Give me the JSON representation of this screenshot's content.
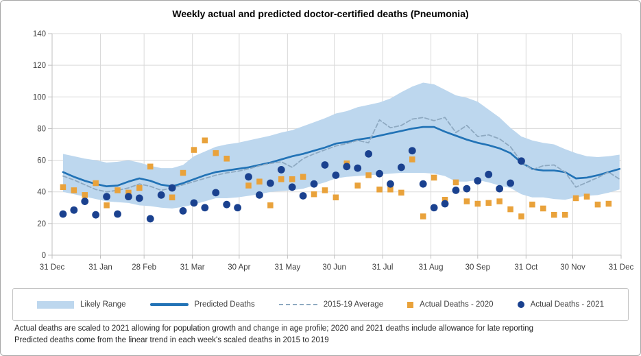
{
  "title": "Weekly actual and predicted doctor-certified deaths (Pneumonia)",
  "legend": {
    "items": [
      {
        "label": "Likely Range",
        "type": "band"
      },
      {
        "label": "Predicted Deaths",
        "type": "line"
      },
      {
        "label": "2015-19 Average",
        "type": "dash"
      },
      {
        "label": "Actual Deaths - 2020",
        "type": "square"
      },
      {
        "label": "Actual Deaths - 2021",
        "type": "circle"
      }
    ]
  },
  "footnotes": {
    "line1": "Actual deaths are scaled to 2021 allowing for population growth and change in age profile; 2020 and 2021 deaths include allowance for late reporting",
    "line2": "Predicted deaths come from the linear trend in each week's scaled deaths in 2015 to 2019"
  },
  "colors": {
    "band": "#BDD7EE",
    "predicted": "#2273B6",
    "average": "#8EA9C1",
    "actual_2020": "#E9A23B",
    "actual_2021": "#1A418F",
    "gridline": "#D9D9D9",
    "axis": "#BFBFBF",
    "tick_text": "#404040"
  },
  "chart_data": {
    "type": "line",
    "title": "Weekly actual and predicted doctor-certified deaths (Pneumonia)",
    "xlabel": "",
    "ylabel": "",
    "ylim": [
      0,
      140
    ],
    "ytick_step": 20,
    "grid": true,
    "legend_position": "bottom",
    "x_axis": {
      "tick_labels": [
        "31 Dec",
        "31 Jan",
        "28 Feb",
        "31 Mar",
        "30 Apr",
        "31 May",
        "30 Jun",
        "31 Jul",
        "31 Aug",
        "30 Sep",
        "31 Oct",
        "30 Nov",
        "31 Dec"
      ],
      "tick_days": [
        0,
        31,
        59,
        90,
        120,
        151,
        181,
        212,
        243,
        273,
        304,
        334,
        365
      ],
      "days_total": 365,
      "weekly_points": 52,
      "days_per_point": 7
    },
    "band": {
      "name": "Likely Range",
      "upper": [
        64,
        62.5,
        61,
        60,
        58.5,
        59,
        60,
        58.5,
        56.5,
        55,
        55,
        57,
        62.5,
        65.5,
        68.5,
        70,
        71,
        72.5,
        74,
        75.5,
        77.5,
        79,
        81.5,
        84,
        86.5,
        89.5,
        91,
        93.5,
        95,
        96.5,
        99,
        103,
        106.5,
        109,
        108,
        104.5,
        101,
        99.5,
        97,
        92,
        87,
        80.5,
        75,
        72.5,
        71,
        70,
        67,
        64.5,
        62.5,
        62,
        62.5,
        63.5
      ],
      "lower": [
        40,
        38.5,
        37,
        35.5,
        34,
        33.5,
        33,
        31.5,
        31,
        30,
        29.5,
        30.5,
        32,
        34,
        36,
        36,
        36.5,
        37.5,
        38.5,
        40,
        40.5,
        41,
        42,
        44,
        46,
        48.5,
        49.5,
        50,
        50.5,
        51,
        51.5,
        52,
        52,
        52,
        51.5,
        50,
        46.5,
        46.5,
        47.5,
        46,
        44,
        42.5,
        38.5,
        36.5,
        36.5,
        35.5,
        35,
        36.5,
        37.5,
        38,
        39.5,
        41.5
      ]
    },
    "series": [
      {
        "name": "Predicted Deaths",
        "style": "solid",
        "weekly_values": [
          52.5,
          49.5,
          47,
          45,
          43.5,
          44,
          46.5,
          48.5,
          47,
          44.5,
          43.5,
          45.5,
          48,
          50.5,
          52.5,
          53.5,
          54.5,
          55.5,
          57,
          58.5,
          60.5,
          62.5,
          64,
          66,
          68,
          70.5,
          71.5,
          73,
          74,
          75.5,
          77,
          78.5,
          80,
          81,
          81,
          78,
          75.5,
          73,
          71,
          69.5,
          67.5,
          64.5,
          58.5,
          54.5,
          53.5,
          53.5,
          52.5,
          48.5,
          49,
          50.5,
          52.5,
          54.5
        ]
      },
      {
        "name": "2015-19 Average",
        "style": "dashed",
        "weekly_values": [
          50,
          47.5,
          44.5,
          41.5,
          40,
          41,
          42.5,
          45,
          43.5,
          41,
          42.5,
          44.5,
          46.5,
          48.5,
          50.5,
          52,
          53,
          54.5,
          56.5,
          58,
          59,
          55.5,
          61,
          64,
          66.5,
          69,
          70.5,
          72.5,
          71,
          85.5,
          80.5,
          82,
          86,
          87,
          85,
          87,
          77.5,
          82,
          75,
          76,
          73.5,
          68.5,
          59,
          54,
          56.5,
          57,
          52.5,
          43,
          46,
          49,
          52.5,
          48
        ]
      }
    ],
    "scatter": [
      {
        "name": "Actual Deaths - 2020",
        "marker": "square",
        "weekly_values": [
          43,
          41,
          38,
          45.5,
          31.5,
          41,
          39.5,
          42.5,
          56,
          null,
          36.5,
          52,
          66.5,
          72.5,
          64.5,
          61,
          null,
          44,
          46.5,
          31.5,
          48,
          48,
          49.5,
          38.5,
          41,
          36.5,
          58,
          44,
          50.5,
          41.5,
          41.5,
          39.5,
          60.5,
          24.5,
          49,
          35,
          46,
          34,
          32.5,
          33,
          34,
          29,
          24.5,
          32,
          29.5,
          25.5,
          25.5,
          36,
          37,
          32,
          32.5,
          null
        ]
      },
      {
        "name": "Actual Deaths - 2021",
        "marker": "circle",
        "weekly_values": [
          26,
          28.5,
          34,
          25.5,
          37,
          26,
          37,
          36,
          23,
          38,
          42.5,
          28,
          33,
          30,
          39.5,
          32,
          30,
          49.5,
          38,
          45.5,
          54,
          43,
          37.5,
          45,
          57,
          50.5,
          56,
          55,
          64,
          51.5,
          45,
          55.5,
          66,
          45,
          30,
          32.5,
          41,
          42,
          47,
          51,
          42,
          45.5,
          59.5,
          null,
          null,
          null,
          null,
          null,
          null,
          null,
          null,
          null
        ]
      }
    ]
  }
}
